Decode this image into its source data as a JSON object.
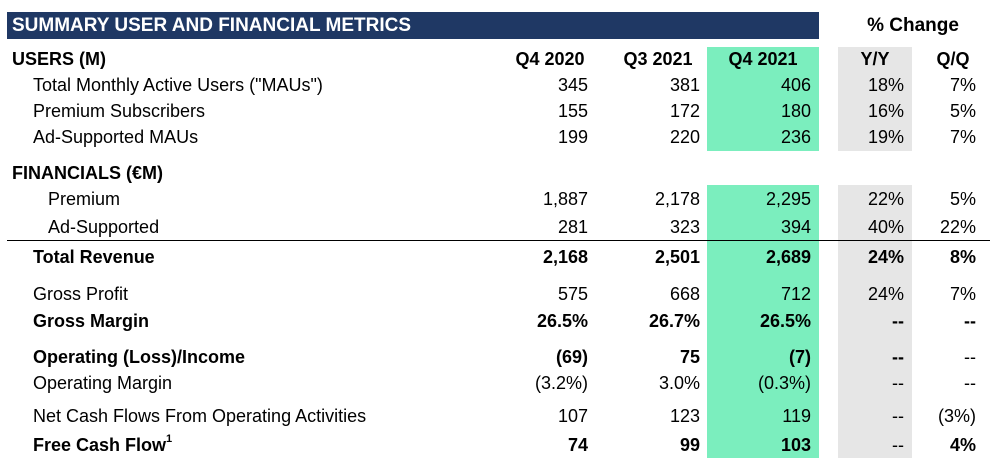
{
  "title": "SUMMARY USER AND FINANCIAL METRICS",
  "pct_change": "% Change",
  "columns": [
    "Q4 2020",
    "Q3 2021",
    "Q4 2021",
    "Y/Y",
    "Q/Q"
  ],
  "users_section": "USERS (M)",
  "financials_section": "FINANCIALS (€M)",
  "highlight_color": "#7beebe",
  "header_color": "#1f3864",
  "rows": [
    {
      "label": "Total Monthly Active Users (\"MAUs\")",
      "values": [
        "345",
        "381",
        "406",
        "18%",
        "7%"
      ]
    },
    {
      "label": "Premium Subscribers",
      "values": [
        "155",
        "172",
        "180",
        "16%",
        "5%"
      ]
    },
    {
      "label": "Ad-Supported MAUs",
      "values": [
        "199",
        "220",
        "236",
        "19%",
        "7%"
      ]
    },
    {
      "label": "Premium",
      "values": [
        "1,887",
        "2,178",
        "2,295",
        "22%",
        "5%"
      ]
    },
    {
      "label": "Ad-Supported",
      "values": [
        "281",
        "323",
        "394",
        "40%",
        "22%"
      ]
    },
    {
      "label": "Total Revenue",
      "values": [
        "2,168",
        "2,501",
        "2,689",
        "24%",
        "8%"
      ]
    },
    {
      "label": "Gross Profit",
      "values": [
        "575",
        "668",
        "712",
        "24%",
        "7%"
      ]
    },
    {
      "label": "Gross Margin",
      "values": [
        "26.5%",
        "26.7%",
        "26.5%",
        "--",
        "--"
      ]
    },
    {
      "label": "Operating (Loss)/Income",
      "values": [
        "(69)",
        "75",
        "(7)",
        "--",
        "--"
      ]
    },
    {
      "label": "Operating Margin",
      "values": [
        "(3.2%)",
        "3.0%",
        "(0.3%)",
        "--",
        "--"
      ]
    },
    {
      "label": "Net Cash Flows From Operating Activities",
      "values": [
        "107",
        "123",
        "119",
        "--",
        "(3%)"
      ]
    },
    {
      "label": "Free Cash Flow",
      "footnote": "1",
      "values": [
        "74",
        "99",
        "103",
        "--",
        "4%"
      ]
    }
  ]
}
